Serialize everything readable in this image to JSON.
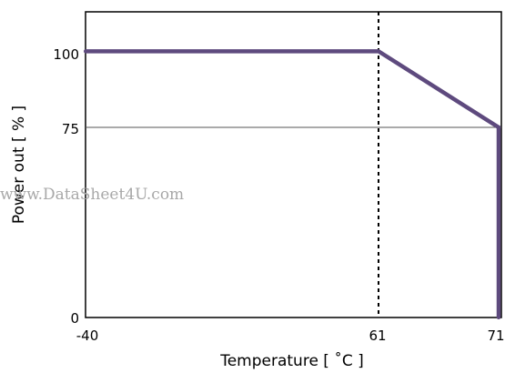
{
  "chart_data": {
    "type": "line",
    "xlabel": "Temperature [ ˚C ]",
    "ylabel": "Power out [ % ]",
    "x_ticks": [
      "-40",
      "61",
      "71"
    ],
    "y_ticks": [
      "0",
      "75",
      "100"
    ],
    "xlim": [
      -40,
      71
    ],
    "ylim": [
      0,
      110
    ],
    "grid": false,
    "series": [
      {
        "color": "#5e4a7e",
        "points": [
          {
            "x": -40,
            "y": 105
          },
          {
            "x": 61,
            "y": 105
          },
          {
            "x": 71,
            "y": 75
          },
          {
            "x": 71,
            "y": 0
          }
        ]
      }
    ],
    "reference_lines": [
      {
        "orientation": "horizontal",
        "value": 75,
        "style": "solid",
        "color": "#555555"
      },
      {
        "orientation": "vertical",
        "value": 61,
        "style": "dotted",
        "color": "#000000"
      }
    ]
  },
  "watermark": "www.DataSheet4U.com"
}
